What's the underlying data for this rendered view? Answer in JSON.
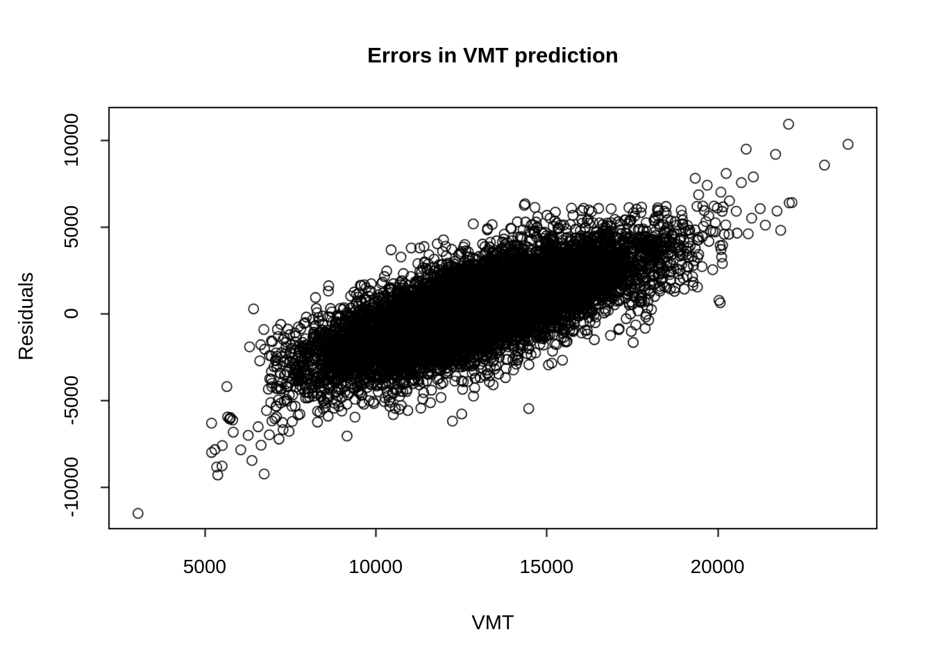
{
  "chart": {
    "title": "Errors in VMT prediction",
    "xlabel": "VMT",
    "ylabel": "Residuals"
  },
  "colors": {
    "foreground": "#000000",
    "background": "#ffffff"
  },
  "chart_data": {
    "type": "scatter",
    "title": "Errors in VMT prediction",
    "xlabel": "VMT",
    "ylabel": "Residuals",
    "xlim": [
      2200,
      24660
    ],
    "ylim": [
      -12400,
      11880
    ],
    "x_ticks": [
      5000,
      10000,
      15000,
      20000
    ],
    "y_ticks": [
      -10000,
      -5000,
      0,
      5000,
      10000
    ],
    "grid": false,
    "legend": null,
    "marker": {
      "shape": "open-circle",
      "color": "#000000",
      "radius_px": 7.0,
      "stroke_px": 1.6
    },
    "n_points_est": 9150,
    "cloud_model": {
      "description": "dense elongated positively-correlated cloud of open circles, solid black in the core",
      "center": [
        13000,
        250
      ],
      "slope": 0.63,
      "x_sd": 2500,
      "residual_sd": 1350,
      "x_core_range": [
        6900,
        20600
      ],
      "y_core_range": [
        -7000,
        6300
      ]
    },
    "generator": {
      "seed": 42,
      "components": [
        {
          "name": "core",
          "n": 8800,
          "x_mean": 13000,
          "x_sd": 2500,
          "x_clip": [
            6900,
            20600
          ],
          "slope": 0.63,
          "y_center": 250,
          "y_noise_sd": 1350,
          "y_clip": [
            -8800,
            6300
          ]
        },
        {
          "name": "halo",
          "n": 280,
          "x_mean": 13000,
          "x_sd": 3200,
          "x_clip": [
            5000,
            21800
          ],
          "slope": 0.63,
          "y_center": 250,
          "y_noise_sd": 2300,
          "y_clip": [
            -9700,
            6400
          ]
        },
        {
          "name": "lower-left-arm",
          "n": 26,
          "x_min": 5100,
          "x_max": 7400,
          "slope": 0.9,
          "y_center": -500,
          "y_noise_sd": 1050,
          "y_clip": [
            -9400,
            -3800
          ]
        }
      ]
    },
    "outlier_points": [
      [
        3050,
        -11520
      ],
      [
        5350,
        -8850
      ],
      [
        6740,
        -9250
      ],
      [
        22080,
        10920
      ],
      [
        23820,
        9760
      ],
      [
        23130,
        8560
      ],
      [
        22180,
        6400
      ],
      [
        20840,
        9480
      ],
      [
        21050,
        7880
      ],
      [
        20255,
        8080
      ],
      [
        21700,
        9180
      ],
      [
        14350,
        6240
      ],
      [
        14660,
        6120
      ],
      [
        15730,
        6080
      ],
      [
        16320,
        5880
      ],
      [
        16890,
        6040
      ],
      [
        19700,
        7400
      ],
      [
        20100,
        7000
      ],
      [
        20350,
        6500
      ],
      [
        19900,
        6200
      ],
      [
        20550,
        5900
      ],
      [
        19450,
        6850
      ],
      [
        20700,
        7550
      ],
      [
        19350,
        7800
      ],
      [
        21000,
        5500
      ],
      [
        21400,
        5100
      ],
      [
        21850,
        4800
      ],
      [
        22100,
        6380
      ],
      [
        21250,
        6050
      ],
      [
        20900,
        4600
      ]
    ]
  }
}
